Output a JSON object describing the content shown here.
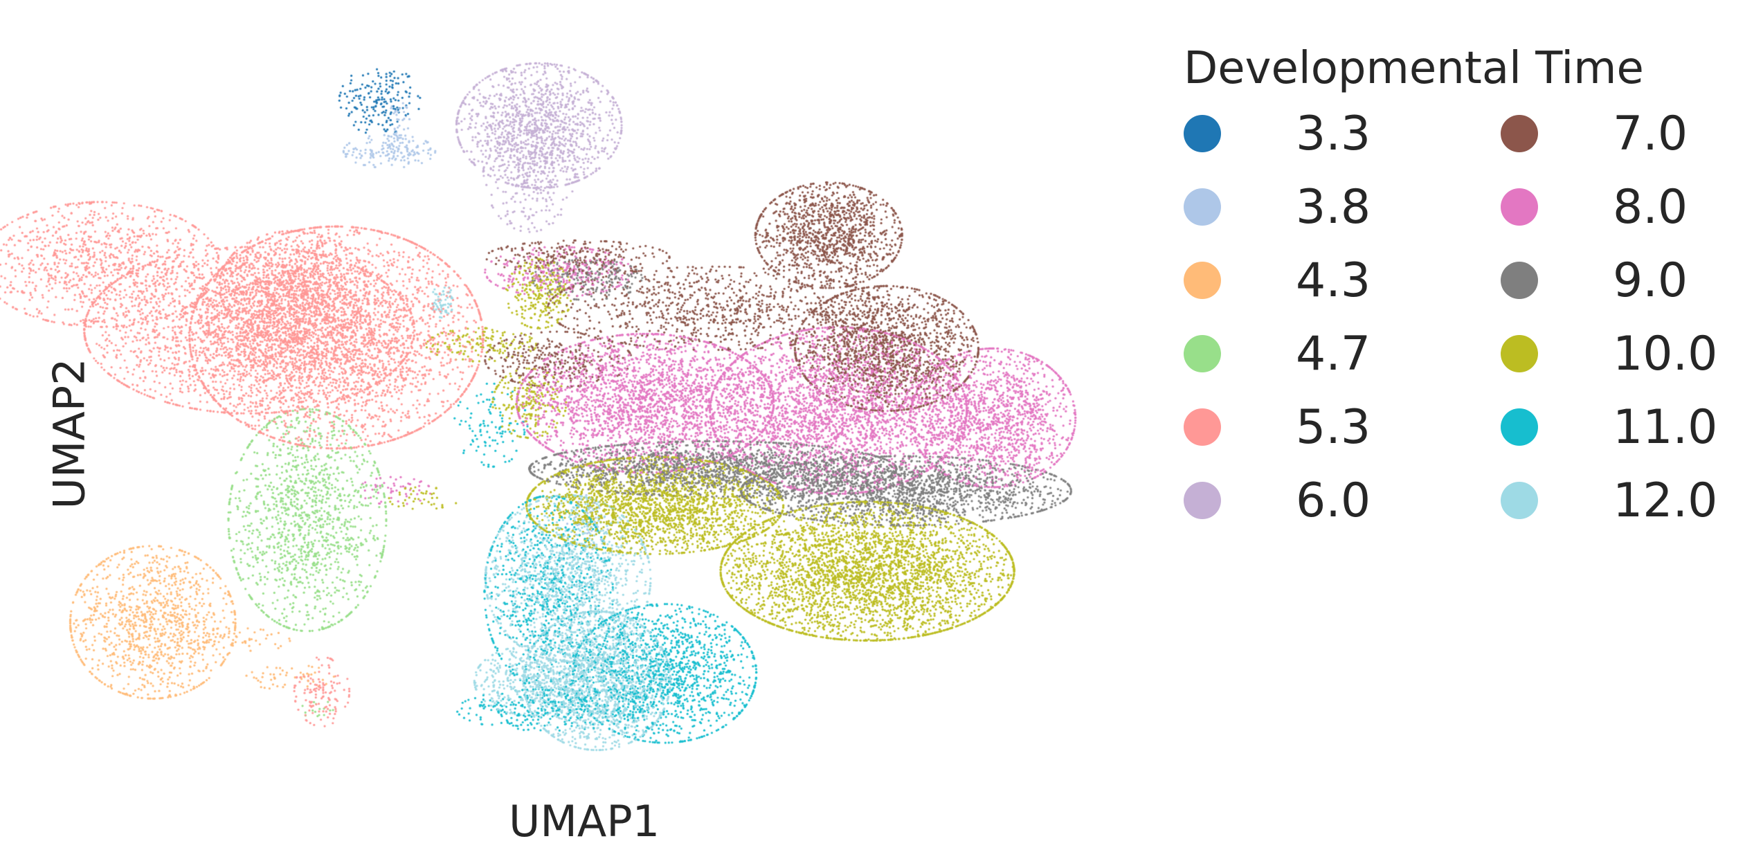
{
  "chart_data": {
    "type": "scatter",
    "title": "",
    "xlabel": "UMAP1",
    "ylabel": "UMAP2",
    "grid": false,
    "axes_visible": false,
    "legend": {
      "title": "Developmental Time",
      "placement": "right",
      "columns": 2,
      "entries": [
        {
          "label": "3.3",
          "color": "#1f77b4"
        },
        {
          "label": "3.8",
          "color": "#aec7e8"
        },
        {
          "label": "4.3",
          "color": "#ffbb78"
        },
        {
          "label": "4.7",
          "color": "#98df8a"
        },
        {
          "label": "5.3",
          "color": "#ff9896"
        },
        {
          "label": "6.0",
          "color": "#c5b0d5"
        },
        {
          "label": "7.0",
          "color": "#8c564b"
        },
        {
          "label": "8.0",
          "color": "#e377c2"
        },
        {
          "label": "9.0",
          "color": "#7f7f7f"
        },
        {
          "label": "10.0",
          "color": "#bcbd22"
        },
        {
          "label": "11.0",
          "color": "#17becf"
        },
        {
          "label": "12.0",
          "color": "#9edae5"
        }
      ]
    },
    "xlim": [
      0,
      100
    ],
    "ylim": [
      0,
      100
    ],
    "series": [
      {
        "name": "3.3",
        "color": "#1f77b4",
        "clusters": [
          [
            27.5,
            91.5,
            2.2,
            2.5,
            180
          ]
        ]
      },
      {
        "name": "3.8",
        "color": "#aec7e8",
        "clusters": [
          [
            28.5,
            84.5,
            2.5,
            1.2,
            150
          ],
          [
            29.5,
            87.5,
            0.6,
            2.2,
            50
          ],
          [
            49,
            34,
            1.2,
            1.8,
            30
          ]
        ]
      },
      {
        "name": "4.3",
        "color": "#ffbb78",
        "clusters": [
          [
            4,
            20,
            4.5,
            5.5,
            1100
          ],
          [
            12.5,
            17.5,
            3,
            0.9,
            60
          ],
          [
            18,
            12.5,
            2.5,
            0.9,
            50
          ]
        ]
      },
      {
        "name": "4.7",
        "color": "#98df8a",
        "clusters": [
          [
            20,
            34,
            4.3,
            8,
            1300
          ],
          [
            21.5,
            8,
            1.2,
            0.6,
            15
          ]
        ]
      },
      {
        "name": "5.3",
        "color": "#ff9896",
        "clusters": [
          [
            -1.5,
            69,
            6.5,
            4.5,
            1000
          ],
          [
            14,
            60,
            9,
            6,
            2200
          ],
          [
            23,
            59,
            8,
            8,
            3000
          ],
          [
            18.5,
            66,
            4,
            4,
            700
          ],
          [
            21.5,
            10.5,
            1.5,
            2.5,
            120
          ]
        ]
      },
      {
        "name": "6.0",
        "color": "#c5b0d5",
        "clusters": [
          [
            44,
            88,
            4.5,
            4.5,
            1200
          ],
          [
            43,
            82,
            2.5,
            4.5,
            300
          ]
        ]
      },
      {
        "name": "7.0",
        "color": "#8c564b",
        "clusters": [
          [
            74,
            73,
            4,
            3.8,
            1200
          ],
          [
            80,
            57.5,
            5,
            4.5,
            1600
          ],
          [
            62,
            63,
            9,
            3,
            900
          ],
          [
            46,
            56,
            4,
            2,
            300
          ],
          [
            48,
            70,
            5,
            1.2,
            250
          ]
        ]
      },
      {
        "name": "8.0",
        "color": "#e377c2",
        "clusters": [
          [
            55,
            50,
            7,
            5,
            2500
          ],
          [
            75,
            49,
            7,
            6,
            2800
          ],
          [
            91,
            48,
            4.5,
            5,
            1500
          ],
          [
            46,
            68,
            4,
            1.8,
            300
          ],
          [
            29,
            38,
            2,
            1,
            50
          ]
        ]
      },
      {
        "name": "9.0",
        "color": "#7f7f7f",
        "clusters": [
          [
            62,
            41,
            10,
            2,
            1800
          ],
          [
            82,
            38,
            9,
            2.5,
            1800
          ],
          [
            49,
            67,
            3,
            1.5,
            200
          ]
        ]
      },
      {
        "name": "10.0",
        "color": "#bcbd22",
        "clusters": [
          [
            56,
            36,
            7,
            3.5,
            2200
          ],
          [
            78,
            27,
            8,
            5,
            3500
          ],
          [
            44,
            65,
            1.8,
            2.5,
            250
          ],
          [
            38,
            58,
            3,
            1.2,
            150
          ],
          [
            43,
            50,
            2,
            2.5,
            200
          ],
          [
            32,
            37,
            2,
            0.8,
            40
          ]
        ]
      },
      {
        "name": "11.0",
        "color": "#17becf",
        "clusters": [
          [
            45,
            24,
            3.5,
            7,
            800
          ],
          [
            57,
            13,
            5,
            5,
            1400
          ],
          [
            45,
            8,
            5,
            1.5,
            300
          ],
          [
            39,
            47,
            2,
            3,
            100
          ]
        ]
      },
      {
        "name": "12.0",
        "color": "#9edae5",
        "clusters": [
          [
            47,
            26,
            4.5,
            6,
            1300
          ],
          [
            50,
            12,
            4,
            5,
            1600
          ],
          [
            43,
            12,
            3,
            2.5,
            400
          ],
          [
            34,
            64,
            0.6,
            1.2,
            60
          ]
        ]
      }
    ]
  }
}
